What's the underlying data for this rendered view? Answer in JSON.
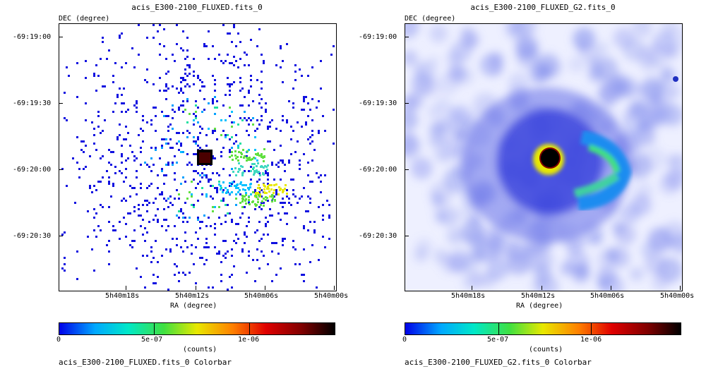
{
  "panels": [
    {
      "title": "acis_E300-2100_FLUXED.fits_0",
      "dec_label": "DEC (degree)",
      "ra_label": "RA (degree)",
      "dec_ticks": [
        "-69:19:00",
        "-69:19:30",
        "-69:20:00",
        "-69:20:30"
      ],
      "ra_ticks": [
        "5h40m18s",
        "5h40m12s",
        "5h40m06s",
        "5h40m00s"
      ],
      "colorbar": {
        "ticks": [
          "0",
          "5e-07",
          "1e-06"
        ],
        "unit": "(counts)",
        "caption": "acis_E300-2100_FLUXED.fits_0 Colorbar"
      }
    },
    {
      "title": "acis_E300-2100_FLUXED_G2.fits_0",
      "dec_label": "DEC (degree)",
      "ra_label": "RA (degree)",
      "dec_ticks": [
        "-69:19:00",
        "-69:19:30",
        "-69:20:00",
        "-69:20:30"
      ],
      "ra_ticks": [
        "5h40m18s",
        "5h40m12s",
        "5h40m06s",
        "5h40m00s"
      ],
      "colorbar": {
        "ticks": [
          "0",
          "5e-07",
          "1e-06"
        ],
        "unit": "(counts)",
        "caption": "acis_E300-2100_FLUXED_G2.fits_0 Colorbar"
      }
    }
  ],
  "colormap": [
    "#ffffff",
    "#0000e8",
    "#00a8ff",
    "#00e8c8",
    "#40e040",
    "#e8e800",
    "#ff8000",
    "#e00000",
    "#800000",
    "#000000"
  ]
}
